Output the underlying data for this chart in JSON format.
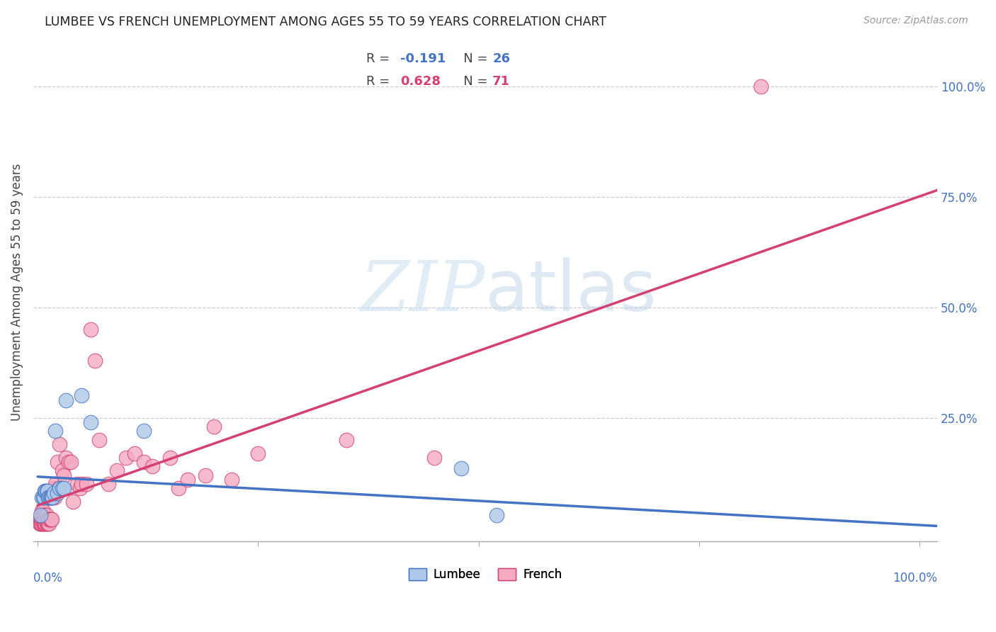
{
  "title": "LUMBEE VS FRENCH UNEMPLOYMENT AMONG AGES 55 TO 59 YEARS CORRELATION CHART",
  "source": "Source: ZipAtlas.com",
  "ylabel": "Unemployment Among Ages 55 to 59 years",
  "ytick_labels": [
    "100.0%",
    "75.0%",
    "50.0%",
    "25.0%"
  ],
  "ytick_values": [
    1.0,
    0.75,
    0.5,
    0.25
  ],
  "lumbee_R": -0.191,
  "lumbee_N": 26,
  "french_R": 0.628,
  "french_N": 71,
  "lumbee_color": "#adc8e8",
  "french_color": "#f4aac0",
  "lumbee_line_color": "#4472c4",
  "french_line_color": "#d44070",
  "watermark_zip": "ZIP",
  "watermark_atlas": "atlas",
  "lumbee_x": [
    0.003,
    0.005,
    0.006,
    0.007,
    0.008,
    0.009,
    0.01,
    0.011,
    0.012,
    0.013,
    0.014,
    0.015,
    0.016,
    0.017,
    0.018,
    0.02,
    0.022,
    0.025,
    0.028,
    0.03,
    0.032,
    0.05,
    0.06,
    0.12,
    0.48,
    0.52
  ],
  "lumbee_y": [
    0.03,
    0.07,
    0.07,
    0.07,
    0.085,
    0.085,
    0.085,
    0.085,
    0.07,
    0.07,
    0.07,
    0.07,
    0.07,
    0.07,
    0.08,
    0.22,
    0.08,
    0.09,
    0.09,
    0.09,
    0.29,
    0.3,
    0.24,
    0.22,
    0.135,
    0.03
  ],
  "french_x": [
    0.002,
    0.003,
    0.003,
    0.004,
    0.004,
    0.005,
    0.005,
    0.005,
    0.005,
    0.006,
    0.006,
    0.006,
    0.006,
    0.007,
    0.007,
    0.007,
    0.008,
    0.008,
    0.008,
    0.009,
    0.009,
    0.01,
    0.01,
    0.01,
    0.011,
    0.011,
    0.012,
    0.012,
    0.013,
    0.013,
    0.014,
    0.015,
    0.015,
    0.016,
    0.016,
    0.017,
    0.018,
    0.019,
    0.02,
    0.022,
    0.024,
    0.025,
    0.028,
    0.03,
    0.032,
    0.035,
    0.038,
    0.04,
    0.045,
    0.048,
    0.05,
    0.055,
    0.06,
    0.065,
    0.07,
    0.08,
    0.09,
    0.1,
    0.11,
    0.12,
    0.13,
    0.15,
    0.16,
    0.17,
    0.19,
    0.2,
    0.22,
    0.25,
    0.35,
    0.45,
    0.82
  ],
  "french_y": [
    0.01,
    0.01,
    0.02,
    0.01,
    0.02,
    0.01,
    0.02,
    0.03,
    0.04,
    0.01,
    0.02,
    0.03,
    0.04,
    0.01,
    0.02,
    0.03,
    0.01,
    0.02,
    0.03,
    0.01,
    0.02,
    0.01,
    0.02,
    0.03,
    0.01,
    0.02,
    0.01,
    0.02,
    0.01,
    0.02,
    0.02,
    0.02,
    0.07,
    0.02,
    0.07,
    0.07,
    0.09,
    0.07,
    0.1,
    0.15,
    0.09,
    0.19,
    0.13,
    0.12,
    0.16,
    0.15,
    0.15,
    0.06,
    0.1,
    0.09,
    0.1,
    0.1,
    0.45,
    0.38,
    0.2,
    0.1,
    0.13,
    0.16,
    0.17,
    0.15,
    0.14,
    0.16,
    0.09,
    0.11,
    0.12,
    0.23,
    0.11,
    0.17,
    0.2,
    0.16,
    1.0
  ]
}
